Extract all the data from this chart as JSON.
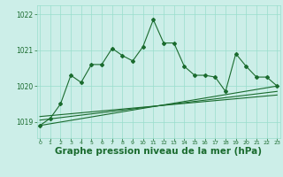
{
  "x": [
    0,
    1,
    2,
    3,
    4,
    5,
    6,
    7,
    8,
    9,
    10,
    11,
    12,
    13,
    14,
    15,
    16,
    17,
    18,
    19,
    20,
    21,
    22,
    23
  ],
  "line1": [
    1018.9,
    1019.1,
    1019.5,
    1020.3,
    1020.1,
    1020.6,
    1020.6,
    1021.05,
    1020.85,
    1020.7,
    1021.1,
    1021.85,
    1021.2,
    1021.2,
    1020.55,
    1020.3,
    1020.3,
    1020.25,
    1019.85,
    1020.9,
    1020.55,
    1020.25,
    1020.25,
    1020.0
  ],
  "trend1_x": [
    0,
    23
  ],
  "trend1_y": [
    1018.9,
    1020.0
  ],
  "trend2_x": [
    0,
    23
  ],
  "trend2_y": [
    1019.05,
    1019.85
  ],
  "trend3_x": [
    0,
    23
  ],
  "trend3_y": [
    1019.15,
    1019.75
  ],
  "bg_color": "#cceee8",
  "grid_color": "#99ddcc",
  "line_color": "#1a6b2e",
  "xlabel": "Graphe pression niveau de la mer (hPa)",
  "xlabel_color": "#1a6b2e",
  "xlabel_fontsize": 7.5,
  "yticks": [
    1019,
    1020,
    1021,
    1022
  ],
  "xticks": [
    0,
    1,
    2,
    3,
    4,
    5,
    6,
    7,
    8,
    9,
    10,
    11,
    12,
    13,
    14,
    15,
    16,
    17,
    18,
    19,
    20,
    21,
    22,
    23
  ],
  "ylim": [
    1018.55,
    1022.25
  ],
  "xlim": [
    -0.3,
    23.3
  ]
}
